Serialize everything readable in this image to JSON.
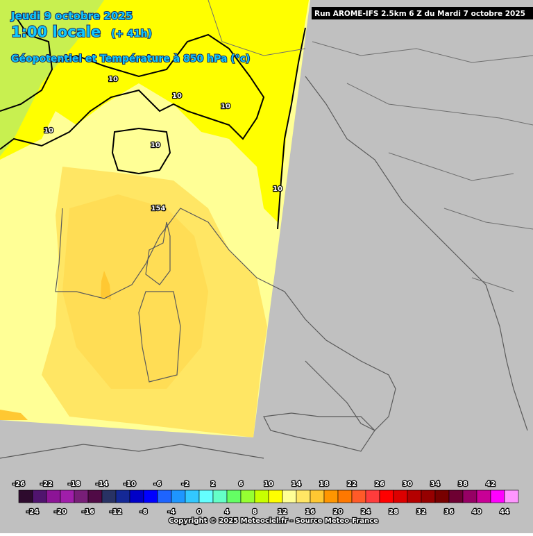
{
  "header": {
    "date": "Jeudi 9 octobre 2025",
    "time": "1:00 locale",
    "lead": "(+ 41h)",
    "field": "Géopotentiel et Température à 850 hPa (°c)",
    "run": "Run AROME-IFS 2.5km 6 Z du Mardi 7 octobre 2025"
  },
  "contour_labels": [
    "10",
    "10",
    "10",
    "10",
    "10",
    "10",
    "154"
  ],
  "legend": {
    "top_labels": [
      -26,
      -22,
      -18,
      -14,
      -10,
      -6,
      -2,
      2,
      6,
      10,
      14,
      18,
      22,
      26,
      30,
      34,
      38,
      42
    ],
    "bottom_labels": [
      -24,
      -20,
      -16,
      -12,
      -8,
      -4,
      0,
      4,
      8,
      12,
      16,
      20,
      24,
      28,
      32,
      36,
      40,
      44
    ]
  },
  "footer": "Copyright © 2025 Meteociel.fr - Source Meteo-France"
}
